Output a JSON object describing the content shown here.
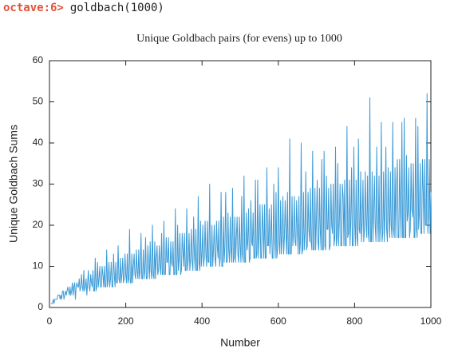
{
  "prompt": {
    "label": "octave:6>",
    "command": "goldbach(1000)"
  },
  "chart_data": {
    "type": "line",
    "title": "Unique Goldbach pairs (for evens) up to 1000",
    "xlabel": "Number",
    "ylabel": "Unique Goldbach Sums",
    "color": "#3a9ad6",
    "xlim": [
      0,
      1000
    ],
    "xticks": [
      0,
      200,
      400,
      600,
      800,
      1000
    ],
    "ylim": [
      0,
      60
    ],
    "yticks": [
      0,
      10,
      20,
      30,
      40,
      50,
      60
    ],
    "x": [
      4,
      6,
      8,
      10,
      12,
      14,
      16,
      18,
      20,
      22,
      24,
      26,
      28,
      30,
      32,
      34,
      36,
      38,
      40,
      42,
      44,
      46,
      48,
      50,
      52,
      54,
      56,
      58,
      60,
      62,
      64,
      66,
      68,
      70,
      72,
      74,
      76,
      78,
      80,
      82,
      84,
      86,
      88,
      90,
      92,
      94,
      96,
      98,
      100,
      102,
      104,
      106,
      108,
      110,
      112,
      114,
      116,
      118,
      120,
      122,
      124,
      126,
      128,
      130,
      132,
      134,
      136,
      138,
      140,
      142,
      144,
      146,
      148,
      150,
      152,
      154,
      156,
      158,
      160,
      162,
      164,
      166,
      168,
      170,
      172,
      174,
      176,
      178,
      180,
      182,
      184,
      186,
      188,
      190,
      192,
      194,
      196,
      198,
      200,
      202,
      204,
      206,
      208,
      210,
      212,
      214,
      216,
      218,
      220,
      222,
      224,
      226,
      228,
      230,
      232,
      234,
      236,
      238,
      240,
      242,
      244,
      246,
      248,
      250,
      252,
      254,
      256,
      258,
      260,
      262,
      264,
      266,
      268,
      270,
      272,
      274,
      276,
      278,
      280,
      282,
      284,
      286,
      288,
      290,
      292,
      294,
      296,
      298,
      300,
      302,
      304,
      306,
      308,
      310,
      312,
      314,
      316,
      318,
      320,
      322,
      324,
      326,
      328,
      330,
      332,
      334,
      336,
      338,
      340,
      342,
      344,
      346,
      348,
      350,
      352,
      354,
      356,
      358,
      360,
      362,
      364,
      366,
      368,
      370,
      372,
      374,
      376,
      378,
      380,
      382,
      384,
      386,
      388,
      390,
      392,
      394,
      396,
      398,
      400,
      402,
      404,
      406,
      408,
      410,
      412,
      414,
      416,
      418,
      420,
      422,
      424,
      426,
      428,
      430,
      432,
      434,
      436,
      438,
      440,
      442,
      444,
      446,
      448,
      450,
      452,
      454,
      456,
      458,
      460,
      462,
      464,
      466,
      468,
      470,
      472,
      474,
      476,
      478,
      480,
      482,
      484,
      486,
      488,
      490,
      492,
      494,
      496,
      498,
      500,
      502,
      504,
      506,
      508,
      510,
      512,
      514,
      516,
      518,
      520,
      522,
      524,
      526,
      528,
      530,
      532,
      534,
      536,
      538,
      540,
      542,
      544,
      546,
      548,
      550,
      552,
      554,
      556,
      558,
      560,
      562,
      564,
      566,
      568,
      570,
      572,
      574,
      576,
      578,
      580,
      582,
      584,
      586,
      588,
      590,
      592,
      594,
      596,
      598,
      600,
      602,
      604,
      606,
      608,
      610,
      612,
      614,
      616,
      618,
      620,
      622,
      624,
      626,
      628,
      630,
      632,
      634,
      636,
      638,
      640,
      642,
      644,
      646,
      648,
      650,
      652,
      654,
      656,
      658,
      660,
      662,
      664,
      666,
      668,
      670,
      672,
      674,
      676,
      678,
      680,
      682,
      684,
      686,
      688,
      690,
      692,
      694,
      696,
      698,
      700,
      702,
      704,
      706,
      708,
      710,
      712,
      714,
      716,
      718,
      720,
      722,
      724,
      726,
      728,
      730,
      732,
      734,
      736,
      738,
      740,
      742,
      744,
      746,
      748,
      750,
      752,
      754,
      756,
      758,
      760,
      762,
      764,
      766,
      768,
      770,
      772,
      774,
      776,
      778,
      780,
      782,
      784,
      786,
      788,
      790,
      792,
      794,
      796,
      798,
      800,
      802,
      804,
      806,
      808,
      810,
      812,
      814,
      816,
      818,
      820,
      822,
      824,
      826,
      828,
      830,
      832,
      834,
      836,
      838,
      840,
      842,
      844,
      846,
      848,
      850,
      852,
      854,
      856,
      858,
      860,
      862,
      864,
      866,
      868,
      870,
      872,
      874,
      876,
      878,
      880,
      882,
      884,
      886,
      888,
      890,
      892,
      894,
      896,
      898,
      900,
      902,
      904,
      906,
      908,
      910,
      912,
      914,
      916,
      918,
      920,
      922,
      924,
      926,
      928,
      930,
      932,
      934,
      936,
      938,
      940,
      942,
      944,
      946,
      948,
      950,
      952,
      954,
      956,
      958,
      960,
      962,
      964,
      966,
      968,
      970,
      972,
      974,
      976,
      978,
      980,
      982,
      984,
      986,
      988,
      990,
      992,
      994,
      996,
      998,
      1000
    ],
    "values": [
      1,
      1,
      1,
      2,
      1,
      2,
      2,
      2,
      2,
      3,
      3,
      3,
      2,
      3,
      2,
      4,
      4,
      2,
      3,
      4,
      3,
      4,
      5,
      4,
      3,
      5,
      3,
      4,
      6,
      3,
      5,
      6,
      2,
      5,
      6,
      5,
      5,
      7,
      4,
      5,
      8,
      5,
      4,
      9,
      4,
      5,
      7,
      3,
      6,
      9,
      5,
      4,
      8,
      6,
      5,
      9,
      4,
      4,
      12,
      4,
      5,
      11,
      5,
      7,
      10,
      5,
      5,
      10,
      8,
      5,
      10,
      5,
      5,
      14,
      5,
      7,
      11,
      5,
      7,
      11,
      5,
      5,
      13,
      8,
      5,
      11,
      6,
      6,
      15,
      7,
      6,
      12,
      6,
      8,
      12,
      6,
      7,
      13,
      8,
      6,
      13,
      6,
      7,
      19,
      6,
      6,
      13,
      6,
      10,
      13,
      8,
      7,
      14,
      9,
      7,
      14,
      7,
      9,
      18,
      7,
      7,
      14,
      7,
      9,
      17,
      7,
      7,
      15,
      10,
      7,
      16,
      9,
      7,
      20,
      8,
      7,
      16,
      7,
      12,
      15,
      8,
      9,
      15,
      10,
      8,
      18,
      8,
      8,
      21,
      8,
      8,
      17,
      11,
      11,
      17,
      8,
      8,
      16,
      11,
      10,
      16,
      8,
      8,
      24,
      8,
      8,
      20,
      9,
      12,
      18,
      8,
      9,
      18,
      14,
      10,
      18,
      9,
      9,
      24,
      9,
      12,
      18,
      9,
      12,
      19,
      11,
      9,
      22,
      13,
      9,
      19,
      9,
      9,
      27,
      11,
      9,
      21,
      10,
      13,
      20,
      10,
      12,
      21,
      13,
      10,
      21,
      11,
      11,
      30,
      10,
      10,
      20,
      10,
      14,
      20,
      12,
      10,
      21,
      15,
      12,
      21,
      10,
      12,
      28,
      10,
      10,
      22,
      11,
      15,
      28,
      11,
      11,
      23,
      14,
      11,
      22,
      14,
      11,
      29,
      11,
      12,
      22,
      11,
      17,
      22,
      13,
      11,
      22,
      15,
      11,
      27,
      13,
      11,
      32,
      11,
      11,
      23,
      14,
      16,
      24,
      11,
      12,
      26,
      16,
      15,
      23,
      12,
      12,
      31,
      12,
      13,
      31,
      12,
      18,
      25,
      12,
      12,
      25,
      19,
      12,
      25,
      12,
      12,
      34,
      15,
      15,
      24,
      13,
      17,
      25,
      12,
      12,
      30,
      17,
      12,
      28,
      12,
      14,
      34,
      16,
      13,
      26,
      13,
      17,
      27,
      13,
      17,
      26,
      18,
      13,
      28,
      13,
      13,
      41,
      13,
      13,
      27,
      15,
      18,
      27,
      16,
      15,
      26,
      19,
      13,
      27,
      13,
      16,
      40,
      13,
      14,
      28,
      14,
      18,
      33,
      14,
      15,
      28,
      19,
      16,
      29,
      16,
      14,
      38,
      14,
      14,
      29,
      14,
      22,
      31,
      16,
      14,
      29,
      19,
      14,
      36,
      14,
      14,
      38,
      15,
      14,
      32,
      19,
      19,
      29,
      14,
      15,
      30,
      20,
      18,
      30,
      15,
      17,
      39,
      15,
      17,
      35,
      15,
      21,
      30,
      15,
      15,
      30,
      27,
      15,
      31,
      15,
      15,
      44,
      17,
      18,
      31,
      15,
      21,
      34,
      15,
      15,
      39,
      21,
      15,
      31,
      17,
      15,
      41,
      19,
      18,
      33,
      16,
      21,
      31,
      16,
      19,
      33,
      21,
      17,
      32,
      18,
      16,
      51,
      16,
      16,
      33,
      16,
      23,
      32,
      20,
      16,
      39,
      22,
      16,
      32,
      16,
      20,
      45,
      16,
      18,
      33,
      16,
      24,
      39,
      19,
      16,
      34,
      22,
      17,
      33,
      20,
      17,
      45,
      19,
      17,
      34,
      17,
      29,
      36,
      17,
      17,
      36,
      24,
      17,
      45,
      17,
      17,
      46,
      17,
      17,
      37,
      21,
      23,
      34,
      17,
      19,
      35,
      24,
      22,
      35,
      17,
      17,
      46,
      19,
      17,
      44,
      19,
      23,
      35,
      18,
      18,
      36,
      28,
      18,
      36,
      20,
      20,
      52,
      18,
      22,
      36,
      18,
      28
    ]
  }
}
